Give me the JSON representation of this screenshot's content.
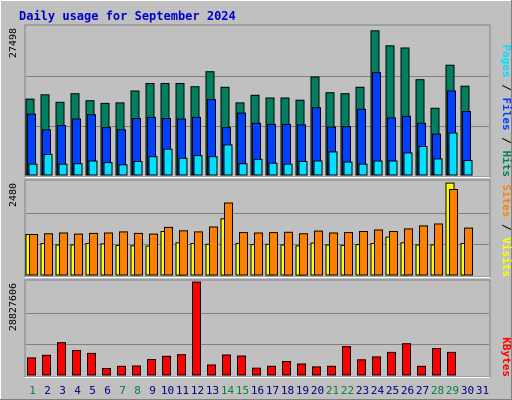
{
  "chart_data": {
    "type": "bar",
    "title": "Daily usage for September 2024",
    "colors": {
      "background": "#c0c0c0",
      "title": "#0000cc",
      "hits": "#008060",
      "files": "#0040ff",
      "pages": "#00e0ff",
      "visits": "#ffff00",
      "sites": "#ff8000",
      "kbytes": "#ff0000",
      "weekend_day": "#008040",
      "weekday": "#000080"
    },
    "days": [
      "1",
      "2",
      "3",
      "4",
      "5",
      "6",
      "7",
      "8",
      "9",
      "10",
      "11",
      "12",
      "13",
      "14",
      "15",
      "16",
      "17",
      "18",
      "19",
      "20",
      "21",
      "22",
      "23",
      "24",
      "25",
      "26",
      "27",
      "28",
      "29",
      "30",
      "31"
    ],
    "weekend_days": [
      "1",
      "7",
      "8",
      "14",
      "15",
      "21",
      "22",
      "28",
      "29"
    ],
    "panels": [
      {
        "id": "hits_files_pages",
        "ymax_label": "27498",
        "ymax": 27498,
        "series": [
          {
            "name": "Hits",
            "color": "#008060",
            "values": [
              14100,
              14900,
              13500,
              15100,
              13800,
              13300,
              13400,
              15600,
              17000,
              17000,
              17000,
              16400,
              19200,
              16300,
              13400,
              14800,
              14300,
              14300,
              13900,
              18200,
              15300,
              15100,
              16300,
              26800,
              24000,
              23600,
              17700,
              12400,
              20400,
              16500,
              0
            ]
          },
          {
            "name": "Files",
            "color": "#0040ff",
            "values": [
              11300,
              8400,
              9200,
              10400,
              11200,
              8800,
              8400,
              10500,
              10700,
              10500,
              10400,
              10700,
              14000,
              8800,
              11500,
              9600,
              9400,
              9400,
              9300,
              12500,
              8900,
              9000,
              12200,
              19000,
              10600,
              10900,
              9600,
              7600,
              15600,
              11800,
              0
            ]
          },
          {
            "name": "Pages",
            "color": "#00e0ff",
            "values": [
              2000,
              3800,
              2000,
              2100,
              2600,
              2300,
              1900,
              2500,
              3400,
              4800,
              3100,
              3600,
              3400,
              5600,
              2100,
              2900,
              2200,
              2000,
              2500,
              2600,
              4300,
              2400,
              2000,
              2600,
              2600,
              4100,
              5300,
              3000,
              7800,
              2700,
              0
            ]
          }
        ]
      },
      {
        "id": "visits_sites",
        "ymax_label": "2480",
        "ymax": 2480,
        "series": [
          {
            "name": "Visits",
            "color": "#ffff00",
            "values": [
              1080,
              840,
              800,
              800,
              840,
              830,
              790,
              780,
              770,
              1160,
              860,
              840,
              820,
              1500,
              840,
              810,
              820,
              800,
              780,
              850,
              800,
              790,
              810,
              840,
              1010,
              860,
              800,
              800,
              2450,
              840,
              0
            ]
          },
          {
            "name": "Sites",
            "color": "#ff8000",
            "values": [
              1080,
              1100,
              1120,
              1090,
              1110,
              1120,
              1150,
              1110,
              1090,
              1270,
              1180,
              1150,
              1280,
              1920,
              1130,
              1120,
              1130,
              1140,
              1100,
              1170,
              1120,
              1130,
              1160,
              1200,
              1160,
              1230,
              1310,
              1360,
              2280,
              1250,
              0
            ]
          }
        ]
      },
      {
        "id": "kbytes",
        "ymax_label": "28827606",
        "ymax": 28827606,
        "series": [
          {
            "name": "KBytes",
            "color": "#ff0000",
            "values": [
              5300000,
              6100000,
              10000000,
              7600000,
              6700000,
              2000000,
              2700000,
              2800000,
              4800000,
              5800000,
              6300000,
              28800000,
              3100000,
              6200000,
              5900000,
              2100000,
              2700000,
              4200000,
              3400000,
              2500000,
              2700000,
              8800000,
              4700000,
              5600000,
              7000000,
              9700000,
              2700000,
              8200000,
              7000000,
              0,
              0
            ]
          }
        ]
      }
    ],
    "legends": [
      {
        "panel": "hits_files_pages",
        "items": [
          {
            "name": "Hits",
            "color": "#008060"
          },
          {
            "name": "Files",
            "color": "#0040ff"
          },
          {
            "name": "Pages",
            "color": "#00e0ff"
          }
        ]
      },
      {
        "panel": "visits_sites",
        "items": [
          {
            "name": "Visits",
            "color": "#ffff00"
          },
          {
            "name": "Sites",
            "color": "#ff8000"
          }
        ]
      },
      {
        "panel": "kbytes",
        "items": [
          {
            "name": "KBytes",
            "color": "#ff0000"
          }
        ]
      }
    ]
  }
}
